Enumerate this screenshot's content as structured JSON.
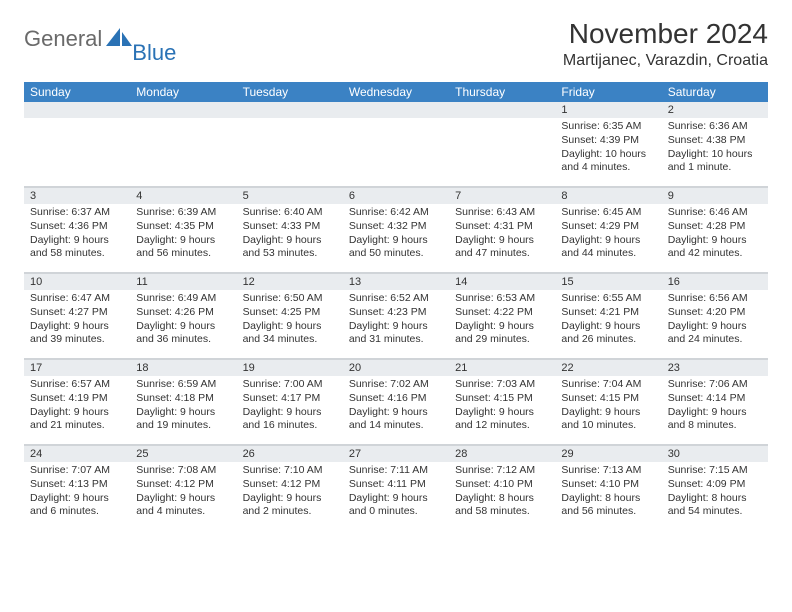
{
  "logo": {
    "text_main": "General",
    "text_accent": "Blue",
    "accent_color": "#2a72b5",
    "main_color": "#6a6a6a"
  },
  "header": {
    "month_title": "November 2024",
    "location": "Martijanec, Varazdin, Croatia"
  },
  "colors": {
    "header_bg": "#3b82c4",
    "header_text": "#ffffff",
    "daynum_bg": "#e9ecef",
    "border": "#d0d4d8",
    "text": "#333333",
    "background": "#ffffff"
  },
  "day_names": [
    "Sunday",
    "Monday",
    "Tuesday",
    "Wednesday",
    "Thursday",
    "Friday",
    "Saturday"
  ],
  "weeks": [
    [
      {
        "n": "",
        "sunrise": "",
        "sunset": "",
        "daylight": ""
      },
      {
        "n": "",
        "sunrise": "",
        "sunset": "",
        "daylight": ""
      },
      {
        "n": "",
        "sunrise": "",
        "sunset": "",
        "daylight": ""
      },
      {
        "n": "",
        "sunrise": "",
        "sunset": "",
        "daylight": ""
      },
      {
        "n": "",
        "sunrise": "",
        "sunset": "",
        "daylight": ""
      },
      {
        "n": "1",
        "sunrise": "Sunrise: 6:35 AM",
        "sunset": "Sunset: 4:39 PM",
        "daylight": "Daylight: 10 hours and 4 minutes."
      },
      {
        "n": "2",
        "sunrise": "Sunrise: 6:36 AM",
        "sunset": "Sunset: 4:38 PM",
        "daylight": "Daylight: 10 hours and 1 minute."
      }
    ],
    [
      {
        "n": "3",
        "sunrise": "Sunrise: 6:37 AM",
        "sunset": "Sunset: 4:36 PM",
        "daylight": "Daylight: 9 hours and 58 minutes."
      },
      {
        "n": "4",
        "sunrise": "Sunrise: 6:39 AM",
        "sunset": "Sunset: 4:35 PM",
        "daylight": "Daylight: 9 hours and 56 minutes."
      },
      {
        "n": "5",
        "sunrise": "Sunrise: 6:40 AM",
        "sunset": "Sunset: 4:33 PM",
        "daylight": "Daylight: 9 hours and 53 minutes."
      },
      {
        "n": "6",
        "sunrise": "Sunrise: 6:42 AM",
        "sunset": "Sunset: 4:32 PM",
        "daylight": "Daylight: 9 hours and 50 minutes."
      },
      {
        "n": "7",
        "sunrise": "Sunrise: 6:43 AM",
        "sunset": "Sunset: 4:31 PM",
        "daylight": "Daylight: 9 hours and 47 minutes."
      },
      {
        "n": "8",
        "sunrise": "Sunrise: 6:45 AM",
        "sunset": "Sunset: 4:29 PM",
        "daylight": "Daylight: 9 hours and 44 minutes."
      },
      {
        "n": "9",
        "sunrise": "Sunrise: 6:46 AM",
        "sunset": "Sunset: 4:28 PM",
        "daylight": "Daylight: 9 hours and 42 minutes."
      }
    ],
    [
      {
        "n": "10",
        "sunrise": "Sunrise: 6:47 AM",
        "sunset": "Sunset: 4:27 PM",
        "daylight": "Daylight: 9 hours and 39 minutes."
      },
      {
        "n": "11",
        "sunrise": "Sunrise: 6:49 AM",
        "sunset": "Sunset: 4:26 PM",
        "daylight": "Daylight: 9 hours and 36 minutes."
      },
      {
        "n": "12",
        "sunrise": "Sunrise: 6:50 AM",
        "sunset": "Sunset: 4:25 PM",
        "daylight": "Daylight: 9 hours and 34 minutes."
      },
      {
        "n": "13",
        "sunrise": "Sunrise: 6:52 AM",
        "sunset": "Sunset: 4:23 PM",
        "daylight": "Daylight: 9 hours and 31 minutes."
      },
      {
        "n": "14",
        "sunrise": "Sunrise: 6:53 AM",
        "sunset": "Sunset: 4:22 PM",
        "daylight": "Daylight: 9 hours and 29 minutes."
      },
      {
        "n": "15",
        "sunrise": "Sunrise: 6:55 AM",
        "sunset": "Sunset: 4:21 PM",
        "daylight": "Daylight: 9 hours and 26 minutes."
      },
      {
        "n": "16",
        "sunrise": "Sunrise: 6:56 AM",
        "sunset": "Sunset: 4:20 PM",
        "daylight": "Daylight: 9 hours and 24 minutes."
      }
    ],
    [
      {
        "n": "17",
        "sunrise": "Sunrise: 6:57 AM",
        "sunset": "Sunset: 4:19 PM",
        "daylight": "Daylight: 9 hours and 21 minutes."
      },
      {
        "n": "18",
        "sunrise": "Sunrise: 6:59 AM",
        "sunset": "Sunset: 4:18 PM",
        "daylight": "Daylight: 9 hours and 19 minutes."
      },
      {
        "n": "19",
        "sunrise": "Sunrise: 7:00 AM",
        "sunset": "Sunset: 4:17 PM",
        "daylight": "Daylight: 9 hours and 16 minutes."
      },
      {
        "n": "20",
        "sunrise": "Sunrise: 7:02 AM",
        "sunset": "Sunset: 4:16 PM",
        "daylight": "Daylight: 9 hours and 14 minutes."
      },
      {
        "n": "21",
        "sunrise": "Sunrise: 7:03 AM",
        "sunset": "Sunset: 4:15 PM",
        "daylight": "Daylight: 9 hours and 12 minutes."
      },
      {
        "n": "22",
        "sunrise": "Sunrise: 7:04 AM",
        "sunset": "Sunset: 4:15 PM",
        "daylight": "Daylight: 9 hours and 10 minutes."
      },
      {
        "n": "23",
        "sunrise": "Sunrise: 7:06 AM",
        "sunset": "Sunset: 4:14 PM",
        "daylight": "Daylight: 9 hours and 8 minutes."
      }
    ],
    [
      {
        "n": "24",
        "sunrise": "Sunrise: 7:07 AM",
        "sunset": "Sunset: 4:13 PM",
        "daylight": "Daylight: 9 hours and 6 minutes."
      },
      {
        "n": "25",
        "sunrise": "Sunrise: 7:08 AM",
        "sunset": "Sunset: 4:12 PM",
        "daylight": "Daylight: 9 hours and 4 minutes."
      },
      {
        "n": "26",
        "sunrise": "Sunrise: 7:10 AM",
        "sunset": "Sunset: 4:12 PM",
        "daylight": "Daylight: 9 hours and 2 minutes."
      },
      {
        "n": "27",
        "sunrise": "Sunrise: 7:11 AM",
        "sunset": "Sunset: 4:11 PM",
        "daylight": "Daylight: 9 hours and 0 minutes."
      },
      {
        "n": "28",
        "sunrise": "Sunrise: 7:12 AM",
        "sunset": "Sunset: 4:10 PM",
        "daylight": "Daylight: 8 hours and 58 minutes."
      },
      {
        "n": "29",
        "sunrise": "Sunrise: 7:13 AM",
        "sunset": "Sunset: 4:10 PM",
        "daylight": "Daylight: 8 hours and 56 minutes."
      },
      {
        "n": "30",
        "sunrise": "Sunrise: 7:15 AM",
        "sunset": "Sunset: 4:09 PM",
        "daylight": "Daylight: 8 hours and 54 minutes."
      }
    ]
  ]
}
